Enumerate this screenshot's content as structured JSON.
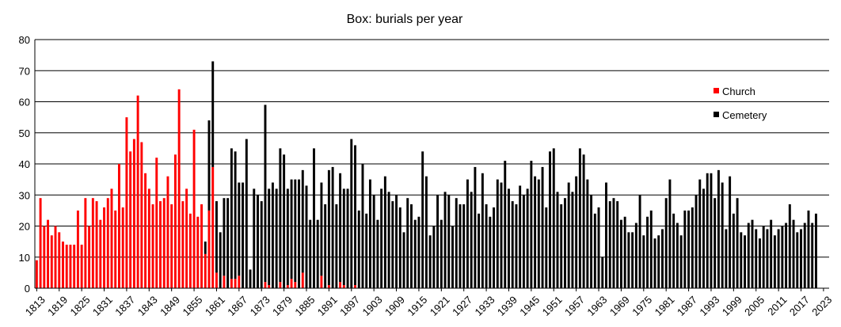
{
  "chart_data": {
    "type": "bar",
    "title": "Box: burials per year",
    "xlabel": "",
    "ylabel": "",
    "stacked": true,
    "ylim": [
      0,
      80
    ],
    "yticks": [
      0,
      10,
      20,
      30,
      40,
      50,
      60,
      70,
      80
    ],
    "grid": "horizontal",
    "legend_position": "right",
    "x_start": 1813,
    "x_end": 2024,
    "x_label_every": 6,
    "series": [
      {
        "name": "Church",
        "color": "#ff0000",
        "values": [
          9,
          29,
          20,
          22,
          17,
          20,
          18,
          15,
          14,
          14,
          14,
          25,
          14,
          29,
          20,
          29,
          28,
          22,
          26,
          29,
          32,
          25,
          40,
          26,
          55,
          44,
          48,
          62,
          47,
          37,
          32,
          27,
          42,
          28,
          29,
          36,
          27,
          43,
          64,
          28,
          32,
          24,
          51,
          23,
          27,
          11,
          25,
          39,
          5,
          0,
          4,
          0,
          3,
          3,
          4,
          0,
          0,
          0,
          0,
          0,
          0,
          2,
          1,
          0,
          0,
          2,
          0,
          1,
          3,
          2,
          0,
          5,
          0,
          0,
          0,
          0,
          4,
          0,
          1,
          0,
          0,
          2,
          1,
          0,
          0,
          1,
          0,
          0,
          0,
          0,
          0,
          0,
          0,
          0,
          0,
          0,
          0,
          0,
          0,
          0,
          0,
          0,
          0,
          0,
          0,
          0,
          0,
          0,
          0,
          0,
          0,
          0,
          0,
          0,
          0,
          0,
          0,
          0,
          0,
          0,
          0,
          0,
          0,
          0,
          0,
          0,
          0,
          0,
          0,
          0,
          0,
          0,
          0,
          0,
          0,
          0,
          0,
          0,
          0,
          0,
          0,
          0,
          0,
          0,
          0,
          0,
          0,
          0,
          0,
          0,
          0,
          0,
          0,
          0,
          0,
          0,
          0,
          0,
          0,
          0,
          0,
          0,
          0,
          0,
          0,
          0,
          0,
          0,
          0,
          0,
          0,
          0,
          0,
          0,
          0,
          0,
          0,
          0,
          0,
          0,
          0,
          0,
          0,
          0,
          0,
          0,
          0,
          0,
          0,
          0,
          0,
          0,
          0,
          0,
          0,
          0,
          0,
          0,
          0,
          0,
          0,
          0,
          0,
          0,
          0,
          0,
          0,
          0,
          0,
          0,
          0,
          0
        ]
      },
      {
        "name": "Cemetery",
        "color": "#000000",
        "values": [
          0,
          0,
          0,
          0,
          0,
          0,
          0,
          0,
          0,
          0,
          0,
          0,
          0,
          0,
          0,
          0,
          0,
          0,
          0,
          0,
          0,
          0,
          0,
          0,
          0,
          0,
          0,
          0,
          0,
          0,
          0,
          0,
          0,
          0,
          0,
          0,
          0,
          0,
          0,
          0,
          0,
          0,
          0,
          0,
          0,
          4,
          29,
          34,
          23,
          18,
          25,
          29,
          42,
          41,
          30,
          34,
          48,
          6,
          32,
          30,
          28,
          57,
          31,
          34,
          32,
          43,
          43,
          31,
          32,
          33,
          35,
          33,
          33,
          22,
          45,
          22,
          30,
          27,
          37,
          39,
          27,
          35,
          31,
          32,
          48,
          45,
          25,
          40,
          24,
          35,
          30,
          22,
          32,
          36,
          31,
          28,
          30,
          26,
          18,
          29,
          27,
          22,
          23,
          44,
          36,
          17,
          20,
          30,
          22,
          31,
          30,
          20,
          29,
          27,
          27,
          35,
          31,
          39,
          24,
          37,
          27,
          23,
          26,
          35,
          34,
          41,
          32,
          28,
          27,
          33,
          30,
          32,
          41,
          36,
          35,
          39,
          26,
          44,
          45,
          31,
          27,
          29,
          34,
          31,
          36,
          45,
          43,
          35,
          30,
          24,
          26,
          10,
          34,
          28,
          29,
          28,
          22,
          23,
          18,
          18,
          21,
          30,
          17,
          23,
          25,
          16,
          17,
          19,
          29,
          35,
          24,
          21,
          17,
          25,
          25,
          26,
          30,
          35,
          32,
          37,
          37,
          29,
          38,
          34,
          19,
          36,
          24,
          29,
          18,
          17,
          21,
          22,
          19,
          16,
          20,
          19,
          22,
          17,
          19,
          20,
          21,
          27,
          22,
          18,
          19,
          21,
          25,
          21,
          24
        ]
      }
    ]
  }
}
